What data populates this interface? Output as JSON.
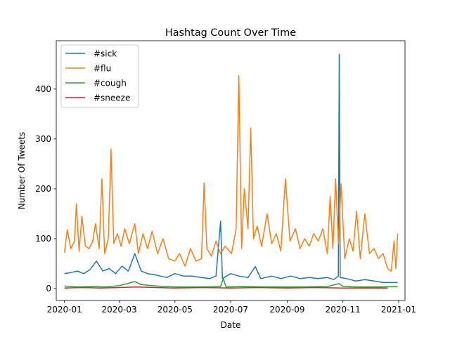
{
  "chart_data": {
    "type": "line",
    "title": "Hashtag Count Over Time",
    "xlabel": "Date",
    "ylabel": "Number Of Tweets",
    "x_ticks": [
      "2020-01",
      "2020-03",
      "2020-05",
      "2020-07",
      "2020-09",
      "2020-11",
      "2021-01"
    ],
    "y_ticks": [
      0,
      100,
      200,
      300,
      400
    ],
    "xlim": [
      "2019-12-23",
      "2021-01-08"
    ],
    "ylim": [
      -24,
      497
    ],
    "legend_position": "upper-left",
    "grid": false,
    "series": [
      {
        "name": "#sick",
        "color": "#1f77b4",
        "points": [
          [
            "2020-01-01",
            30
          ],
          [
            "2020-01-08",
            32
          ],
          [
            "2020-01-15",
            35
          ],
          [
            "2020-01-22",
            30
          ],
          [
            "2020-01-29",
            38
          ],
          [
            "2020-02-05",
            55
          ],
          [
            "2020-02-12",
            35
          ],
          [
            "2020-02-19",
            40
          ],
          [
            "2020-02-26",
            30
          ],
          [
            "2020-03-04",
            45
          ],
          [
            "2020-03-11",
            35
          ],
          [
            "2020-03-18",
            70
          ],
          [
            "2020-03-25",
            35
          ],
          [
            "2020-04-01",
            30
          ],
          [
            "2020-04-08",
            28
          ],
          [
            "2020-04-15",
            25
          ],
          [
            "2020-04-22",
            22
          ],
          [
            "2020-05-01",
            30
          ],
          [
            "2020-05-10",
            25
          ],
          [
            "2020-05-20",
            25
          ],
          [
            "2020-05-30",
            22
          ],
          [
            "2020-06-08",
            20
          ],
          [
            "2020-06-15",
            25
          ],
          [
            "2020-06-20",
            135
          ],
          [
            "2020-06-22",
            20
          ],
          [
            "2020-07-01",
            30
          ],
          [
            "2020-07-10",
            25
          ],
          [
            "2020-07-20",
            22
          ],
          [
            "2020-07-28",
            44
          ],
          [
            "2020-08-03",
            20
          ],
          [
            "2020-08-15",
            25
          ],
          [
            "2020-08-25",
            20
          ],
          [
            "2020-09-05",
            25
          ],
          [
            "2020-09-15",
            20
          ],
          [
            "2020-09-25",
            22
          ],
          [
            "2020-10-05",
            20
          ],
          [
            "2020-10-15",
            22
          ],
          [
            "2020-10-22",
            18
          ],
          [
            "2020-10-27",
            25
          ],
          [
            "2020-10-28",
            470
          ],
          [
            "2020-10-29",
            22
          ],
          [
            "2020-11-05",
            20
          ],
          [
            "2020-11-15",
            15
          ],
          [
            "2020-11-25",
            18
          ],
          [
            "2020-12-05",
            15
          ],
          [
            "2020-12-15",
            12
          ],
          [
            "2020-12-22",
            12
          ],
          [
            "2020-12-31",
            12
          ]
        ]
      },
      {
        "name": "#flu",
        "color": "#ff7f0e",
        "points": [
          [
            "2020-01-01",
            72
          ],
          [
            "2020-01-04",
            118
          ],
          [
            "2020-01-08",
            80
          ],
          [
            "2020-01-12",
            95
          ],
          [
            "2020-01-14",
            170
          ],
          [
            "2020-01-17",
            75
          ],
          [
            "2020-01-20",
            145
          ],
          [
            "2020-01-24",
            85
          ],
          [
            "2020-01-28",
            80
          ],
          [
            "2020-02-01",
            95
          ],
          [
            "2020-02-04",
            130
          ],
          [
            "2020-02-08",
            80
          ],
          [
            "2020-02-11",
            220
          ],
          [
            "2020-02-14",
            70
          ],
          [
            "2020-02-18",
            100
          ],
          [
            "2020-02-21",
            280
          ],
          [
            "2020-02-24",
            90
          ],
          [
            "2020-02-28",
            110
          ],
          [
            "2020-03-03",
            85
          ],
          [
            "2020-03-07",
            120
          ],
          [
            "2020-03-12",
            90
          ],
          [
            "2020-03-18",
            130
          ],
          [
            "2020-03-22",
            70
          ],
          [
            "2020-03-27",
            110
          ],
          [
            "2020-04-01",
            80
          ],
          [
            "2020-04-06",
            115
          ],
          [
            "2020-04-12",
            70
          ],
          [
            "2020-04-18",
            100
          ],
          [
            "2020-04-24",
            60
          ],
          [
            "2020-05-01",
            55
          ],
          [
            "2020-05-06",
            70
          ],
          [
            "2020-05-12",
            45
          ],
          [
            "2020-05-18",
            80
          ],
          [
            "2020-05-24",
            55
          ],
          [
            "2020-05-30",
            60
          ],
          [
            "2020-06-02",
            212
          ],
          [
            "2020-06-05",
            80
          ],
          [
            "2020-06-10",
            65
          ],
          [
            "2020-06-15",
            95
          ],
          [
            "2020-06-20",
            70
          ],
          [
            "2020-06-25",
            85
          ],
          [
            "2020-07-02",
            70
          ],
          [
            "2020-07-07",
            120
          ],
          [
            "2020-07-10",
            427
          ],
          [
            "2020-07-13",
            80
          ],
          [
            "2020-07-16",
            200
          ],
          [
            "2020-07-20",
            120
          ],
          [
            "2020-07-23",
            322
          ],
          [
            "2020-07-26",
            100
          ],
          [
            "2020-07-30",
            125
          ],
          [
            "2020-08-04",
            85
          ],
          [
            "2020-08-10",
            150
          ],
          [
            "2020-08-15",
            90
          ],
          [
            "2020-08-20",
            110
          ],
          [
            "2020-08-25",
            75
          ],
          [
            "2020-08-30",
            220
          ],
          [
            "2020-09-04",
            95
          ],
          [
            "2020-09-10",
            120
          ],
          [
            "2020-09-15",
            80
          ],
          [
            "2020-09-20",
            100
          ],
          [
            "2020-09-25",
            85
          ],
          [
            "2020-09-30",
            110
          ],
          [
            "2020-10-05",
            95
          ],
          [
            "2020-10-10",
            120
          ],
          [
            "2020-10-15",
            70
          ],
          [
            "2020-10-18",
            185
          ],
          [
            "2020-10-21",
            80
          ],
          [
            "2020-10-24",
            220
          ],
          [
            "2020-10-27",
            90
          ],
          [
            "2020-10-30",
            210
          ],
          [
            "2020-11-03",
            60
          ],
          [
            "2020-11-08",
            100
          ],
          [
            "2020-11-12",
            75
          ],
          [
            "2020-11-16",
            155
          ],
          [
            "2020-11-20",
            60
          ],
          [
            "2020-11-25",
            150
          ],
          [
            "2020-11-30",
            70
          ],
          [
            "2020-12-05",
            80
          ],
          [
            "2020-12-10",
            60
          ],
          [
            "2020-12-15",
            70
          ],
          [
            "2020-12-20",
            40
          ],
          [
            "2020-12-24",
            35
          ],
          [
            "2020-12-27",
            95
          ],
          [
            "2020-12-29",
            40
          ],
          [
            "2020-12-31",
            110
          ]
        ]
      },
      {
        "name": "#cough",
        "color": "#2ca02c",
        "points": [
          [
            "2020-01-01",
            5
          ],
          [
            "2020-01-15",
            3
          ],
          [
            "2020-02-01",
            4
          ],
          [
            "2020-02-15",
            3
          ],
          [
            "2020-03-01",
            6
          ],
          [
            "2020-03-10",
            10
          ],
          [
            "2020-03-18",
            14
          ],
          [
            "2020-03-25",
            8
          ],
          [
            "2020-04-05",
            6
          ],
          [
            "2020-04-20",
            4
          ],
          [
            "2020-05-05",
            3
          ],
          [
            "2020-06-01",
            3
          ],
          [
            "2020-06-20",
            4
          ],
          [
            "2020-06-23",
            20
          ],
          [
            "2020-06-26",
            3
          ],
          [
            "2020-07-15",
            4
          ],
          [
            "2020-08-15",
            3
          ],
          [
            "2020-09-15",
            3
          ],
          [
            "2020-10-15",
            4
          ],
          [
            "2020-10-28",
            10
          ],
          [
            "2020-11-01",
            4
          ],
          [
            "2020-11-20",
            3
          ],
          [
            "2020-12-10",
            3
          ],
          [
            "2020-12-31",
            4
          ]
        ]
      },
      {
        "name": "#sneeze",
        "color": "#d62728",
        "points": [
          [
            "2020-01-01",
            1
          ],
          [
            "2020-01-20",
            2
          ],
          [
            "2020-02-10",
            1
          ],
          [
            "2020-03-01",
            2
          ],
          [
            "2020-03-20",
            3
          ],
          [
            "2020-04-10",
            2
          ],
          [
            "2020-05-01",
            1
          ],
          [
            "2020-06-01",
            2
          ],
          [
            "2020-07-01",
            1
          ],
          [
            "2020-08-01",
            2
          ],
          [
            "2020-09-01",
            1
          ],
          [
            "2020-10-01",
            2
          ],
          [
            "2020-11-01",
            1
          ],
          [
            "2020-12-01",
            1
          ],
          [
            "2020-12-20",
            1
          ]
        ]
      }
    ]
  }
}
